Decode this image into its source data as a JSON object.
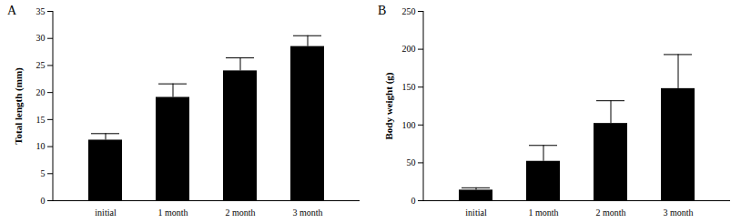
{
  "chart_data": [
    {
      "type": "bar",
      "title": "A",
      "y_label": "Total length (mm)",
      "categories": [
        "initial",
        "1 month",
        "2 month",
        "3 month"
      ],
      "values": [
        11.2,
        19.1,
        24.0,
        28.5
      ],
      "errors": [
        1.2,
        2.5,
        2.4,
        2.0
      ],
      "color": "#000000",
      "ylim": [
        0,
        35
      ],
      "yticks": [
        0,
        5,
        10,
        15,
        20,
        25,
        30,
        35
      ],
      "grid": false
    },
    {
      "type": "bar",
      "title": "B",
      "y_label": "Body weight (g)",
      "categories": [
        "initial",
        "1 month",
        "2 month",
        "3 month"
      ],
      "values": [
        14,
        52,
        102,
        148
      ],
      "errors": [
        3,
        21,
        30,
        45
      ],
      "color": "#000000",
      "ylim": [
        0,
        250
      ],
      "yticks": [
        0,
        50,
        100,
        150,
        200,
        250
      ],
      "grid": false
    }
  ]
}
